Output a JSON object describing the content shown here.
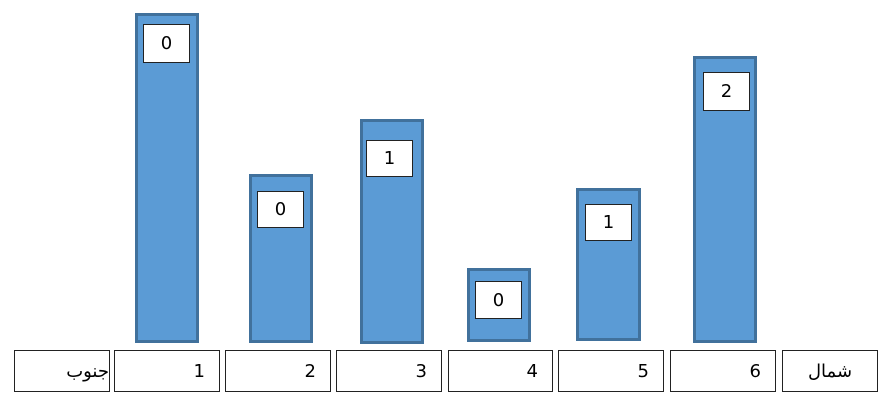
{
  "bars": [
    {
      "label": 0
    },
    {
      "label": 0
    },
    {
      "label": 1
    },
    {
      "label": 0
    },
    {
      "label": 1
    },
    {
      "label": 2
    }
  ],
  "cells": [
    "جنوب",
    1,
    2,
    3,
    4,
    5,
    6,
    "شمال"
  ]
}
